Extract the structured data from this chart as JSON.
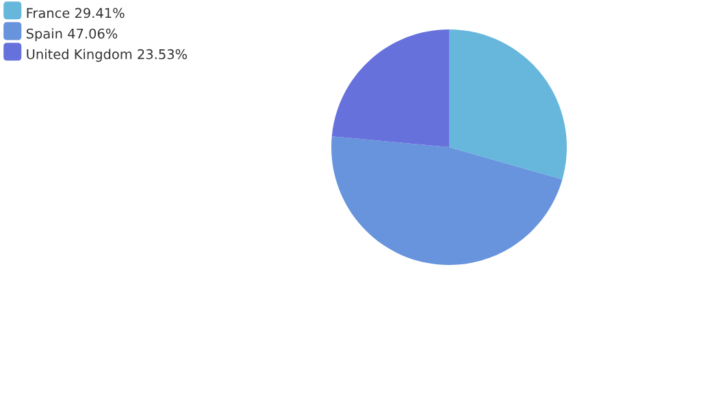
{
  "chart_data": {
    "type": "pie",
    "categories": [
      "France",
      "Spain",
      "United Kingdom"
    ],
    "values": [
      29.41,
      47.06,
      23.53
    ],
    "value_labels": [
      "29.41%",
      "47.06%",
      "23.53%"
    ],
    "colors": [
      "#67b7dc",
      "#6794dc",
      "#6771dc"
    ],
    "legend": "top left"
  }
}
